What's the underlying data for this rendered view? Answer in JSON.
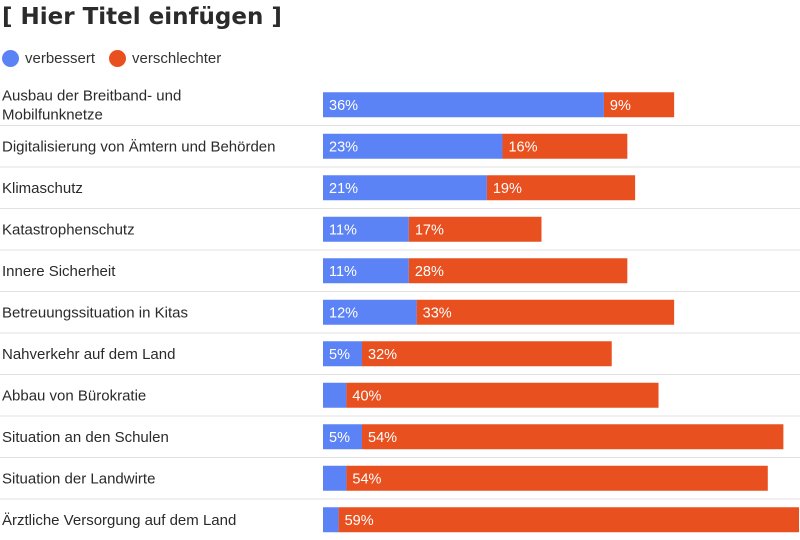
{
  "chart_data": {
    "type": "bar",
    "orientation": "horizontal",
    "stacked": true,
    "title": "[ Hier Titel einfügen ]",
    "legend_placement": "top-left",
    "grid": false,
    "colors": {
      "verbessert": "#5b83f5",
      "verschlechtert": "#e8501f",
      "separator": "#e2e2e2"
    },
    "categories": [
      "Ausbau der Breitband- und Mobilfunknetze",
      "Digitalisierung von Ämtern und Behörden",
      "Klimaschutz",
      "Katastrophenschutz",
      "Innere Sicherheit",
      "Betreuungssituation in Kitas",
      "Nahverkehr auf dem Land",
      "Abbau von Bürokratie",
      "Situation an den Schulen",
      "Situation der Landwirte",
      "Ärztliche Versorgung auf dem Land"
    ],
    "category_lines": [
      [
        "Ausbau der Breitband- und",
        "Mobilfunknetze"
      ],
      [
        "Digitalisierung von Ämtern und Behörden"
      ],
      [
        "Klimaschutz"
      ],
      [
        "Katastrophenschutz"
      ],
      [
        "Innere Sicherheit"
      ],
      [
        "Betreuungssituation in Kitas"
      ],
      [
        "Nahverkehr auf dem Land"
      ],
      [
        "Abbau von Bürokratie"
      ],
      [
        "Situation an den Schulen"
      ],
      [
        "Situation der Landwirte"
      ],
      [
        "Ärztliche Versorgung auf dem Land"
      ]
    ],
    "series": [
      {
        "name": "verbessert",
        "values": [
          36,
          23,
          21,
          11,
          11,
          12,
          5,
          3,
          5,
          3,
          2
        ],
        "labels": [
          "36%",
          "23%",
          "21%",
          "11%",
          "11%",
          "12%",
          "5%",
          "",
          "5%",
          "",
          ""
        ]
      },
      {
        "name": "verschlechter",
        "values": [
          9,
          16,
          19,
          17,
          28,
          33,
          32,
          40,
          54,
          54,
          59
        ],
        "labels": [
          "9%",
          "16%",
          "19%",
          "17%",
          "28%",
          "33%",
          "32%",
          "40%",
          "54%",
          "54%",
          "59%"
        ]
      }
    ],
    "xlim": [
      0,
      61
    ]
  }
}
